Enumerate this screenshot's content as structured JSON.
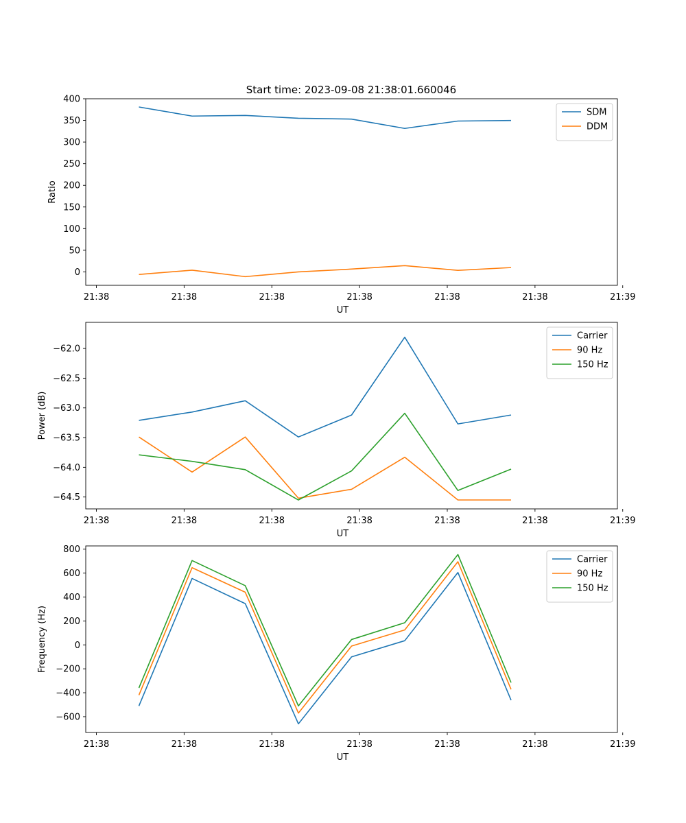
{
  "figure": {
    "title": "Start time: 2023-09-08 21:38:01.660046"
  },
  "chart_data": [
    {
      "type": "line",
      "xlabel": "UT",
      "ylabel": "Ratio",
      "ylim": [
        -31,
        400
      ],
      "yticks": [
        0,
        50,
        100,
        150,
        200,
        250,
        300,
        350,
        400
      ],
      "xlim": [
        0,
        10
      ],
      "xticks": [
        0.2,
        1.85,
        3.5,
        5.15,
        6.8,
        8.45,
        10.1
      ],
      "xtick_labels": [
        "21:38",
        "21:38",
        "21:38",
        "21:38",
        "21:38",
        "21:38",
        "21:39"
      ],
      "legend": "top-right",
      "x": [
        1,
        2,
        3,
        4,
        5,
        6,
        7,
        8
      ],
      "series": [
        {
          "name": "SDM",
          "color": "#1f77b4",
          "values": [
            381,
            360,
            361.5,
            355,
            353,
            331.5,
            348.5,
            349.8
          ]
        },
        {
          "name": "DDM",
          "color": "#ff7f0e",
          "values": [
            -6,
            4,
            -11,
            0,
            6.5,
            14.5,
            3.5,
            10
          ]
        }
      ]
    },
    {
      "type": "line",
      "xlabel": "UT",
      "ylabel": "Power (dB)",
      "ylim": [
        -64.7,
        -61.56
      ],
      "yticks": [
        -64.5,
        -64.0,
        -63.5,
        -63.0,
        -62.5,
        -62.0
      ],
      "ytick_labels": [
        "−64.5",
        "−64.0",
        "−63.5",
        "−63.0",
        "−62.5",
        "−62.0"
      ],
      "xlim": [
        0,
        10
      ],
      "xticks": [
        0.2,
        1.85,
        3.5,
        5.15,
        6.8,
        8.45,
        10.1
      ],
      "xtick_labels": [
        "21:38",
        "21:38",
        "21:38",
        "21:38",
        "21:38",
        "21:38",
        "21:39"
      ],
      "legend": "top-right",
      "x": [
        1,
        2,
        3,
        4,
        5,
        6,
        7,
        8
      ],
      "series": [
        {
          "name": "Carrier",
          "color": "#1f77b4",
          "values": [
            -63.21,
            -63.07,
            -62.88,
            -63.49,
            -63.12,
            -61.81,
            -63.27,
            -63.12
          ]
        },
        {
          "name": "90 Hz",
          "color": "#ff7f0e",
          "values": [
            -63.49,
            -64.08,
            -63.49,
            -64.52,
            -64.37,
            -63.83,
            -64.55,
            -64.55
          ]
        },
        {
          "name": "150 Hz",
          "color": "#2ca02c",
          "values": [
            -63.79,
            -63.9,
            -64.04,
            -64.55,
            -64.06,
            -63.09,
            -64.39,
            -64.03
          ]
        }
      ]
    },
    {
      "type": "line",
      "xlabel": "UT",
      "ylabel": "Frequency (Hz)",
      "ylim": [
        -732,
        827
      ],
      "yticks": [
        -600,
        -400,
        -200,
        0,
        200,
        400,
        600,
        800
      ],
      "ytick_labels": [
        "−600",
        "−400",
        "−200",
        "0",
        "200",
        "400",
        "600",
        "800"
      ],
      "xlim": [
        0,
        10
      ],
      "xticks": [
        0.2,
        1.85,
        3.5,
        5.15,
        6.8,
        8.45,
        10.1
      ],
      "xtick_labels": [
        "21:38",
        "21:38",
        "21:38",
        "21:38",
        "21:38",
        "21:38",
        "21:39"
      ],
      "legend": "top-right",
      "x": [
        1,
        2,
        3,
        4,
        5,
        6,
        7,
        8
      ],
      "series": [
        {
          "name": "Carrier",
          "color": "#1f77b4",
          "values": [
            -510,
            555,
            345,
            -660,
            -100,
            35,
            605,
            -462
          ]
        },
        {
          "name": "90 Hz",
          "color": "#ff7f0e",
          "values": [
            -420,
            645,
            440,
            -570,
            -10,
            125,
            695,
            -372
          ]
        },
        {
          "name": "150 Hz",
          "color": "#2ca02c",
          "values": [
            -360,
            705,
            495,
            -510,
            45,
            185,
            755,
            -315
          ]
        }
      ]
    }
  ]
}
